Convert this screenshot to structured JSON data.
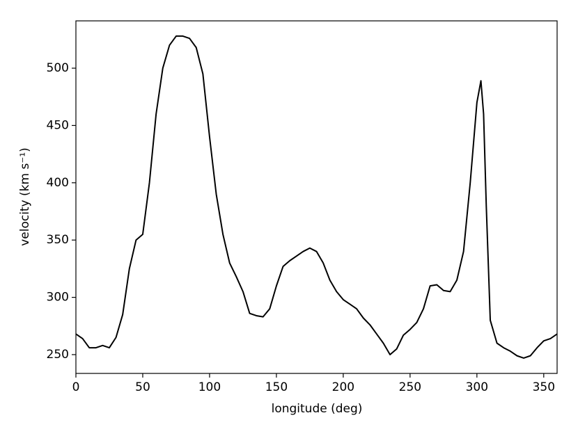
{
  "chart_data": {
    "type": "line",
    "xlabel": "longitude (deg)",
    "ylabel": "velocity (km s⁻¹)",
    "x": [
      0,
      5,
      10,
      15,
      20,
      25,
      30,
      35,
      40,
      45,
      50,
      55,
      60,
      65,
      70,
      75,
      80,
      85,
      90,
      95,
      100,
      105,
      110,
      115,
      120,
      125,
      130,
      135,
      140,
      145,
      150,
      155,
      160,
      165,
      170,
      175,
      180,
      185,
      190,
      195,
      200,
      205,
      210,
      215,
      220,
      225,
      230,
      235,
      240,
      245,
      250,
      255,
      260,
      265,
      270,
      275,
      280,
      285,
      290,
      295,
      300,
      303,
      305,
      307,
      310,
      315,
      320,
      325,
      330,
      335,
      340,
      345,
      350,
      355,
      360
    ],
    "series": [
      {
        "color": "#000000",
        "values": [
          268,
          264,
          256,
          256,
          258,
          256,
          265,
          285,
          325,
          350,
          355,
          400,
          460,
          500,
          520,
          528,
          528,
          526,
          518,
          495,
          440,
          390,
          355,
          330,
          318,
          305,
          286,
          284,
          283,
          290,
          310,
          327,
          332,
          336,
          340,
          343,
          340,
          330,
          315,
          305,
          298,
          294,
          290,
          282,
          276,
          268,
          260,
          250,
          255,
          267,
          272,
          278,
          290,
          310,
          311,
          306,
          305,
          315,
          340,
          400,
          470,
          489,
          460,
          380,
          280,
          260,
          256,
          253,
          249,
          247,
          249,
          256,
          262,
          264,
          268
        ]
      }
    ],
    "xlim": [
      0,
      360
    ],
    "xticks": [
      0,
      50,
      100,
      150,
      200,
      250,
      300,
      350
    ],
    "ylim": [
      233.6,
      541.3
    ],
    "yticks": [
      250,
      300,
      350,
      400,
      450,
      500
    ]
  }
}
